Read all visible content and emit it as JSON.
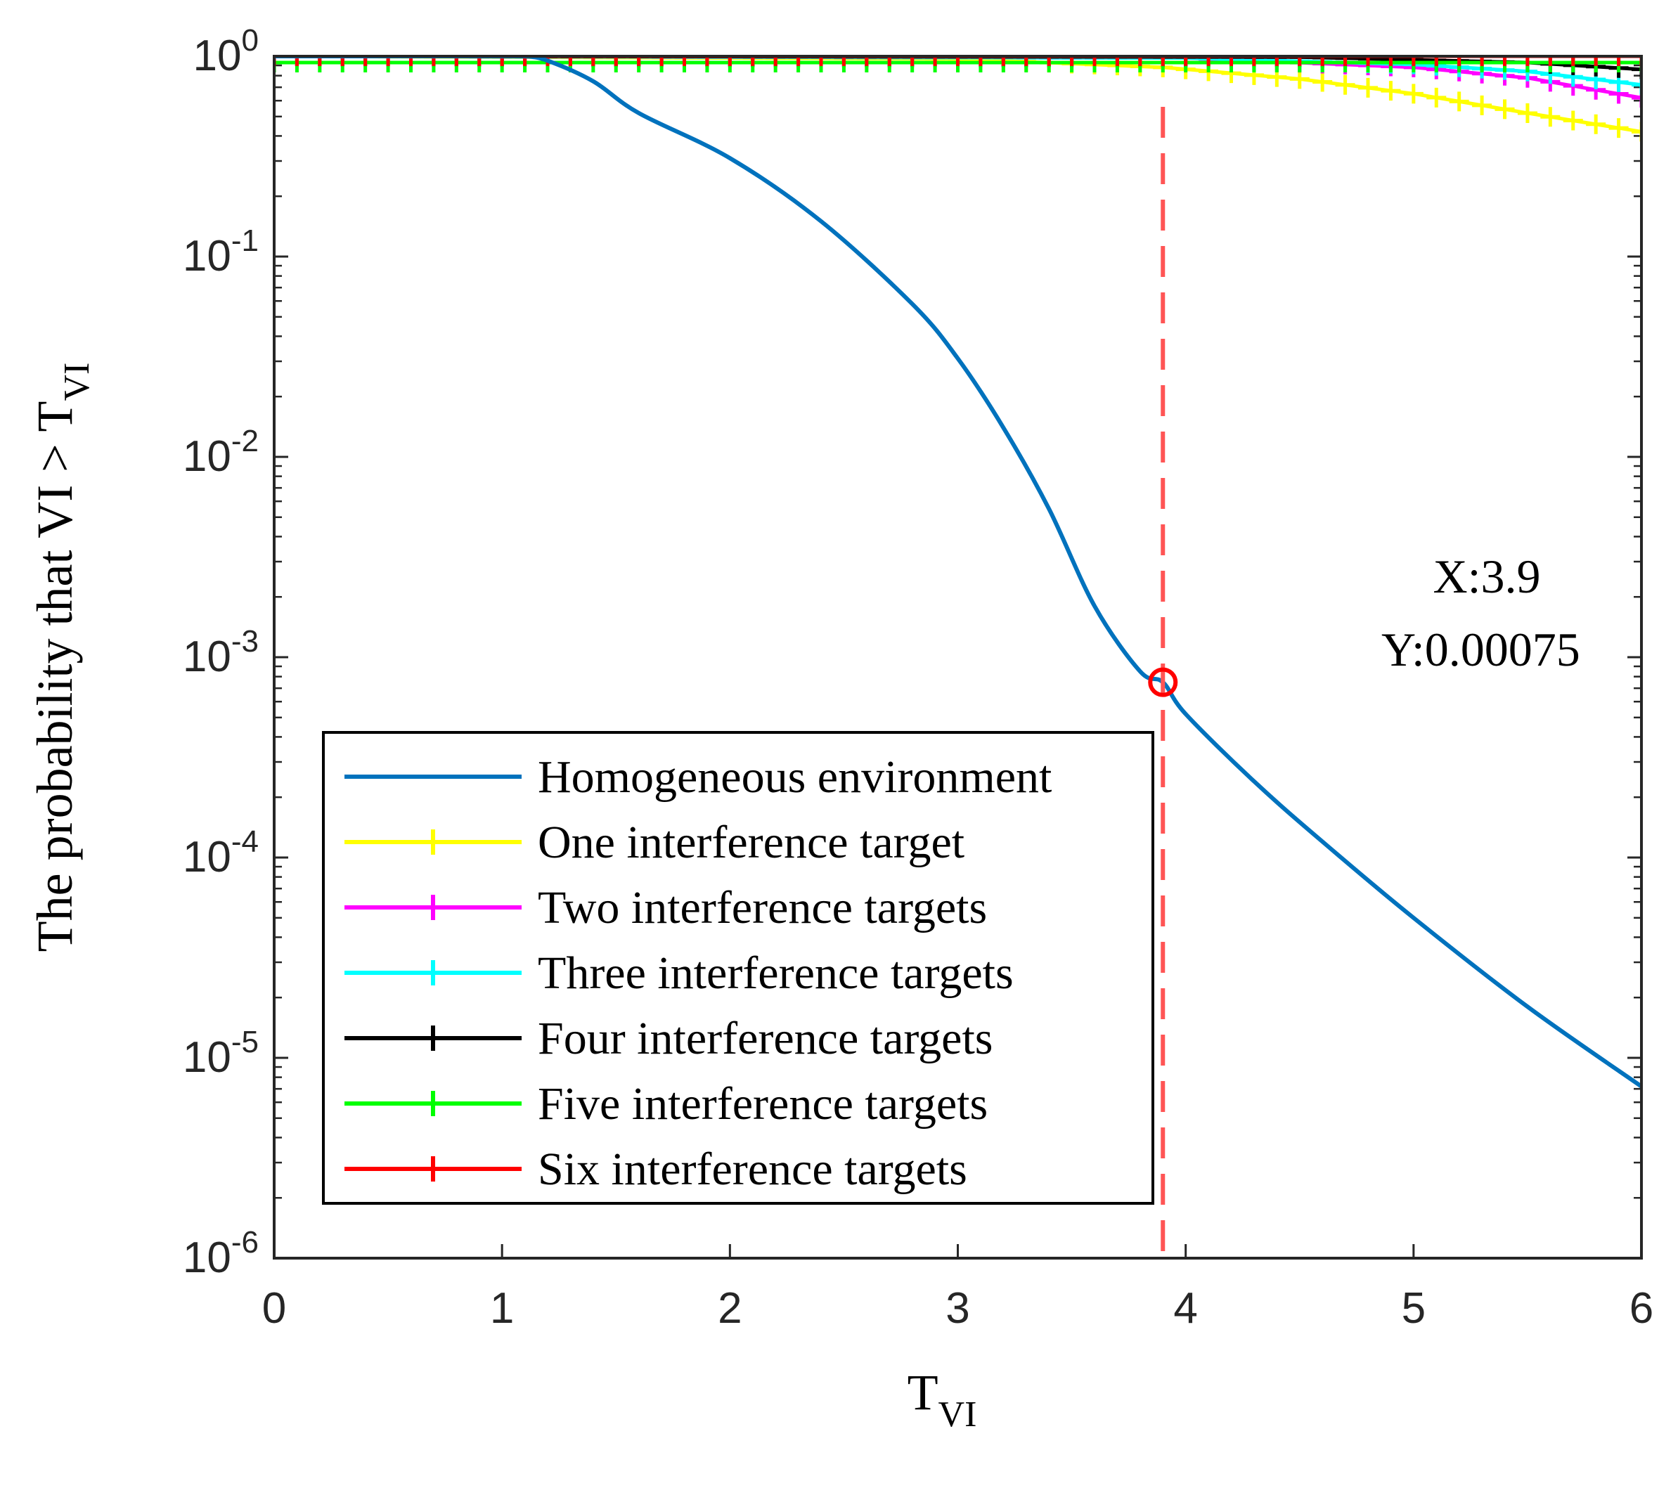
{
  "chart_data": {
    "type": "line",
    "y_scale": "log",
    "xlim": [
      0,
      6
    ],
    "ylim": [
      1e-06,
      1
    ],
    "x_ticks": [
      {
        "value": 0,
        "label": "0"
      },
      {
        "value": 1,
        "label": "1"
      },
      {
        "value": 2,
        "label": "2"
      },
      {
        "value": 3,
        "label": "3"
      },
      {
        "value": 4,
        "label": "4"
      },
      {
        "value": 5,
        "label": "5"
      },
      {
        "value": 6,
        "label": "6"
      }
    ],
    "y_ticks": [
      {
        "value": 1,
        "base": "10",
        "exp": "0"
      },
      {
        "value": 0.1,
        "base": "10",
        "exp": "-1"
      },
      {
        "value": 0.01,
        "base": "10",
        "exp": "-2"
      },
      {
        "value": 0.001,
        "base": "10",
        "exp": "-3"
      },
      {
        "value": 0.0001,
        "base": "10",
        "exp": "-4"
      },
      {
        "value": 1e-05,
        "base": "10",
        "exp": "-5"
      },
      {
        "value": 1e-06,
        "base": "10",
        "exp": "-6"
      }
    ],
    "xlabel": {
      "main": "T",
      "sub": "VI"
    },
    "ylabel": {
      "main": "The probability that VI > T",
      "sub": "VI"
    },
    "legend_position": "bottom-left",
    "series": [
      {
        "name": "Homogeneous environment",
        "color": "#0072BD",
        "marker": "none",
        "x": [
          0,
          1.0,
          1.1,
          1.2,
          1.4,
          1.6,
          2.0,
          2.4,
          2.8,
          3.0,
          3.2,
          3.4,
          3.6,
          3.8,
          3.9,
          4.0,
          4.3,
          4.6,
          5.0,
          5.5,
          6.0
        ],
        "y": [
          1,
          1,
          1,
          0.95,
          0.75,
          0.52,
          0.31,
          0.15,
          0.058,
          0.031,
          0.014,
          0.0055,
          0.0018,
          0.00085,
          0.00075,
          0.00052,
          0.00024,
          0.00012,
          5e-05,
          1.8e-05,
          7.2e-06
        ]
      },
      {
        "name": "One interference target",
        "color": "#FFFF00",
        "marker": "+",
        "x": [
          0,
          3.0,
          3.9,
          4.5,
          5.0,
          5.5,
          6.0
        ],
        "y": [
          1,
          0.97,
          0.88,
          0.77,
          0.65,
          0.52,
          0.42
        ]
      },
      {
        "name": "Two interference targets",
        "color": "#FF00FF",
        "marker": "+",
        "x": [
          0,
          4.0,
          5.0,
          5.5,
          6.0
        ],
        "y": [
          1,
          0.98,
          0.88,
          0.78,
          0.62
        ]
      },
      {
        "name": "Three interference targets",
        "color": "#00FFFF",
        "marker": "+",
        "x": [
          0,
          4.0,
          5.0,
          5.5,
          6.0
        ],
        "y": [
          1,
          0.98,
          0.91,
          0.84,
          0.72
        ]
      },
      {
        "name": "Four interference targets",
        "color": "#000000",
        "marker": "+",
        "x": [
          0,
          4.5,
          5.5,
          6.0
        ],
        "y": [
          1,
          0.99,
          0.93,
          0.86
        ]
      },
      {
        "name": "Five interference targets",
        "color": "#00FF00",
        "marker": "+",
        "x": [
          0,
          4.0,
          5.0,
          6.0
        ],
        "y": [
          0.93,
          0.93,
          0.93,
          0.93
        ]
      },
      {
        "name": "Six interference targets",
        "color": "#FF0000",
        "marker": "+",
        "x": [
          0,
          6.0
        ],
        "y": [
          1,
          1
        ]
      }
    ],
    "marker_line": {
      "x": 3.9,
      "color": "#FF5555",
      "style": "dashed"
    },
    "datatip": {
      "x": 3.9,
      "y": 0.00075,
      "x_text": "X:3.9",
      "y_text": "Y:0.00075",
      "color": "#FF0000"
    }
  }
}
